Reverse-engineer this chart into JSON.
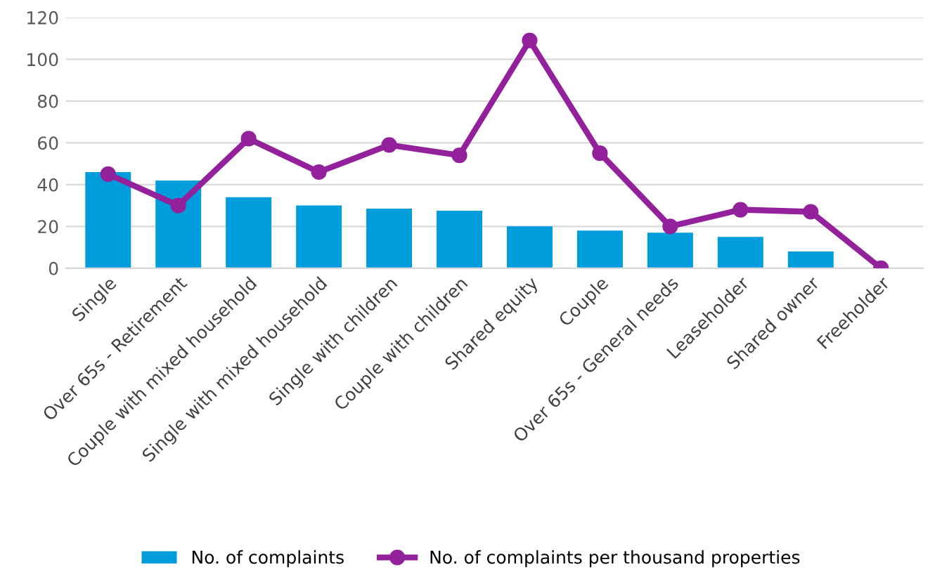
{
  "chart_data": {
    "type": "bar",
    "categories": [
      "Single",
      "Over 65s - Retirement",
      "Couple with mixed household",
      "Single with mixed household",
      "Single with children",
      "Couple with children",
      "Shared equity",
      "Couple",
      "Over 65s - General needs",
      "Leaseholder",
      "Shared owner",
      "Freeholder"
    ],
    "series": [
      {
        "name": "No. of complaints",
        "color": "#009ddc",
        "values": [
          46,
          42,
          34,
          30,
          28.5,
          27.5,
          20,
          18,
          17,
          15,
          8,
          0
        ]
      },
      {
        "name": "No. of complaints per thousand properties",
        "type": "line",
        "color": "#93219b",
        "marker": "circle",
        "values": [
          45,
          30,
          62,
          46,
          59,
          54,
          109,
          55,
          20,
          28,
          27,
          0
        ]
      }
    ],
    "ylim": [
      0,
      120
    ],
    "yticks": [
      0,
      20,
      40,
      60,
      80,
      100,
      120
    ],
    "grid": "y",
    "legend": "bottom"
  }
}
